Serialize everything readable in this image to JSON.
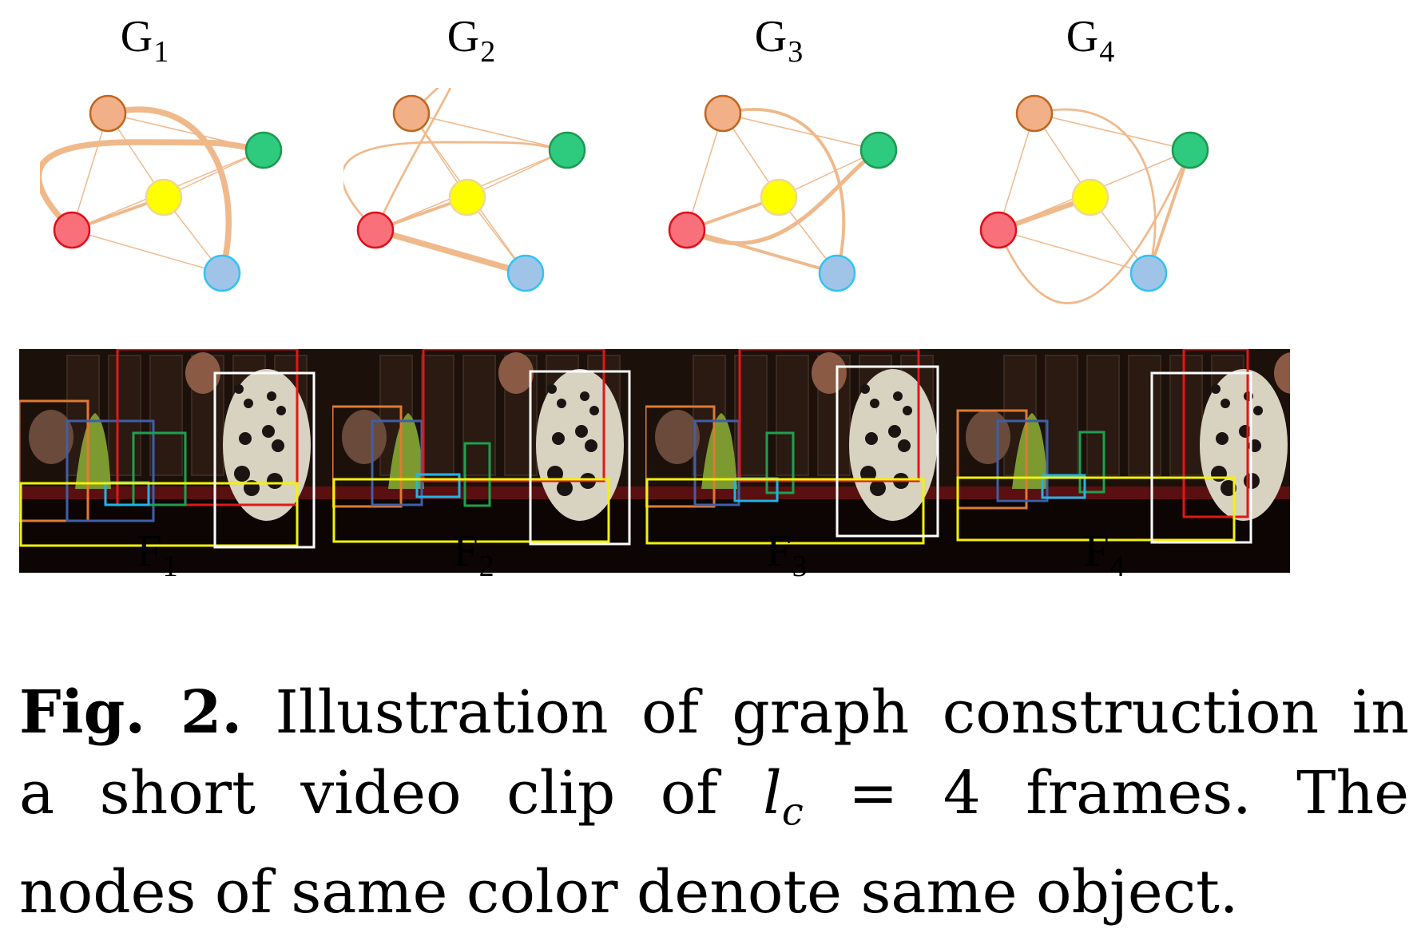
{
  "graphs": [
    {
      "label": "G",
      "sub": "1",
      "edges": [
        {
          "a": "orange",
          "b": "green",
          "w": 1
        },
        {
          "a": "orange",
          "b": "yellow",
          "w": 1
        },
        {
          "a": "orange",
          "b": "red",
          "w": 1
        },
        {
          "a": "red",
          "b": "green",
          "w": 1
        },
        {
          "a": "red",
          "b": "yellow",
          "w": 3
        },
        {
          "a": "red",
          "b": "blue",
          "w": 1
        },
        {
          "a": "yellow",
          "b": "blue",
          "w": 1
        },
        {
          "a": "yellow",
          "b": "green",
          "w": 1
        },
        {
          "a": "orange",
          "b": "blue",
          "w": 6,
          "curve": "arc-right"
        },
        {
          "a": "red",
          "b": "green",
          "w": 6,
          "curve": "loop-left"
        }
      ]
    },
    {
      "label": "G",
      "sub": "2",
      "edges": [
        {
          "a": "orange",
          "b": "green",
          "w": 1
        },
        {
          "a": "orange",
          "b": "yellow",
          "w": 1
        },
        {
          "a": "orange",
          "b": "blue",
          "w": 1
        },
        {
          "a": "red",
          "b": "green",
          "w": 1
        },
        {
          "a": "red",
          "b": "yellow",
          "w": 3
        },
        {
          "a": "red",
          "b": "blue",
          "w": 6
        },
        {
          "a": "yellow",
          "b": "green",
          "w": 1
        },
        {
          "a": "yellow",
          "b": "blue",
          "w": 1
        },
        {
          "a": "orange",
          "b": "red",
          "w": 2,
          "curve": "arc-top"
        },
        {
          "a": "red",
          "b": "green",
          "w": 2,
          "curve": "loop-left"
        }
      ]
    },
    {
      "label": "G",
      "sub": "3",
      "edges": [
        {
          "a": "orange",
          "b": "green",
          "w": 1
        },
        {
          "a": "orange",
          "b": "yellow",
          "w": 1
        },
        {
          "a": "orange",
          "b": "red",
          "w": 1
        },
        {
          "a": "red",
          "b": "yellow",
          "w": 3
        },
        {
          "a": "red",
          "b": "blue",
          "w": 3
        },
        {
          "a": "yellow",
          "b": "green",
          "w": 1
        },
        {
          "a": "yellow",
          "b": "blue",
          "w": 1
        },
        {
          "a": "orange",
          "b": "blue",
          "w": 3,
          "curve": "arc-right"
        },
        {
          "a": "red",
          "b": "green",
          "w": 4,
          "curve": "sag"
        }
      ]
    },
    {
      "label": "G",
      "sub": "4",
      "edges": [
        {
          "a": "orange",
          "b": "green",
          "w": 1
        },
        {
          "a": "orange",
          "b": "yellow",
          "w": 1
        },
        {
          "a": "orange",
          "b": "red",
          "w": 1
        },
        {
          "a": "red",
          "b": "yellow",
          "w": 5
        },
        {
          "a": "red",
          "b": "blue",
          "w": 1
        },
        {
          "a": "red",
          "b": "green",
          "w": 1
        },
        {
          "a": "yellow",
          "b": "blue",
          "w": 1
        },
        {
          "a": "blue",
          "b": "green",
          "w": 3
        },
        {
          "a": "orange",
          "b": "blue",
          "w": 2,
          "curve": "arc-right"
        },
        {
          "a": "red",
          "b": "green",
          "w": 2,
          "curve": "deep-sag"
        }
      ]
    }
  ],
  "frames": [
    {
      "label": "F",
      "sub": "1"
    },
    {
      "label": "F",
      "sub": "2"
    },
    {
      "label": "F",
      "sub": "3"
    },
    {
      "label": "F",
      "sub": "4"
    }
  ],
  "node_colors": {
    "orange": {
      "fill": "#f2b088",
      "stroke": "#c0661e"
    },
    "green": {
      "fill": "#2ecb7f",
      "stroke": "#1e9a50"
    },
    "yellow": {
      "fill": "#ffff00",
      "stroke": "#f0d890"
    },
    "red": {
      "fill": "#f9707a",
      "stroke": "#e0101a"
    },
    "blue": {
      "fill": "#a0c4e8",
      "stroke": "#33c3f0"
    }
  },
  "edge_color": "#f0b98b",
  "box_colors": {
    "orange": "#e07a32",
    "navy": "#3f5fa8",
    "red": "#e01818",
    "green": "#1fa050",
    "cyan": "#22b4e8",
    "yellow": "#f2f20a",
    "white": "#ffffff"
  },
  "caption": {
    "fig_label": "Fig. 2.",
    "line1_rest": "Illustration of graph construction in",
    "line2_pre": "a short video clip of",
    "var_base": "l",
    "var_sub": "c",
    "line2_post": "= 4 frames. The",
    "line3": "nodes of same color denote same object."
  }
}
